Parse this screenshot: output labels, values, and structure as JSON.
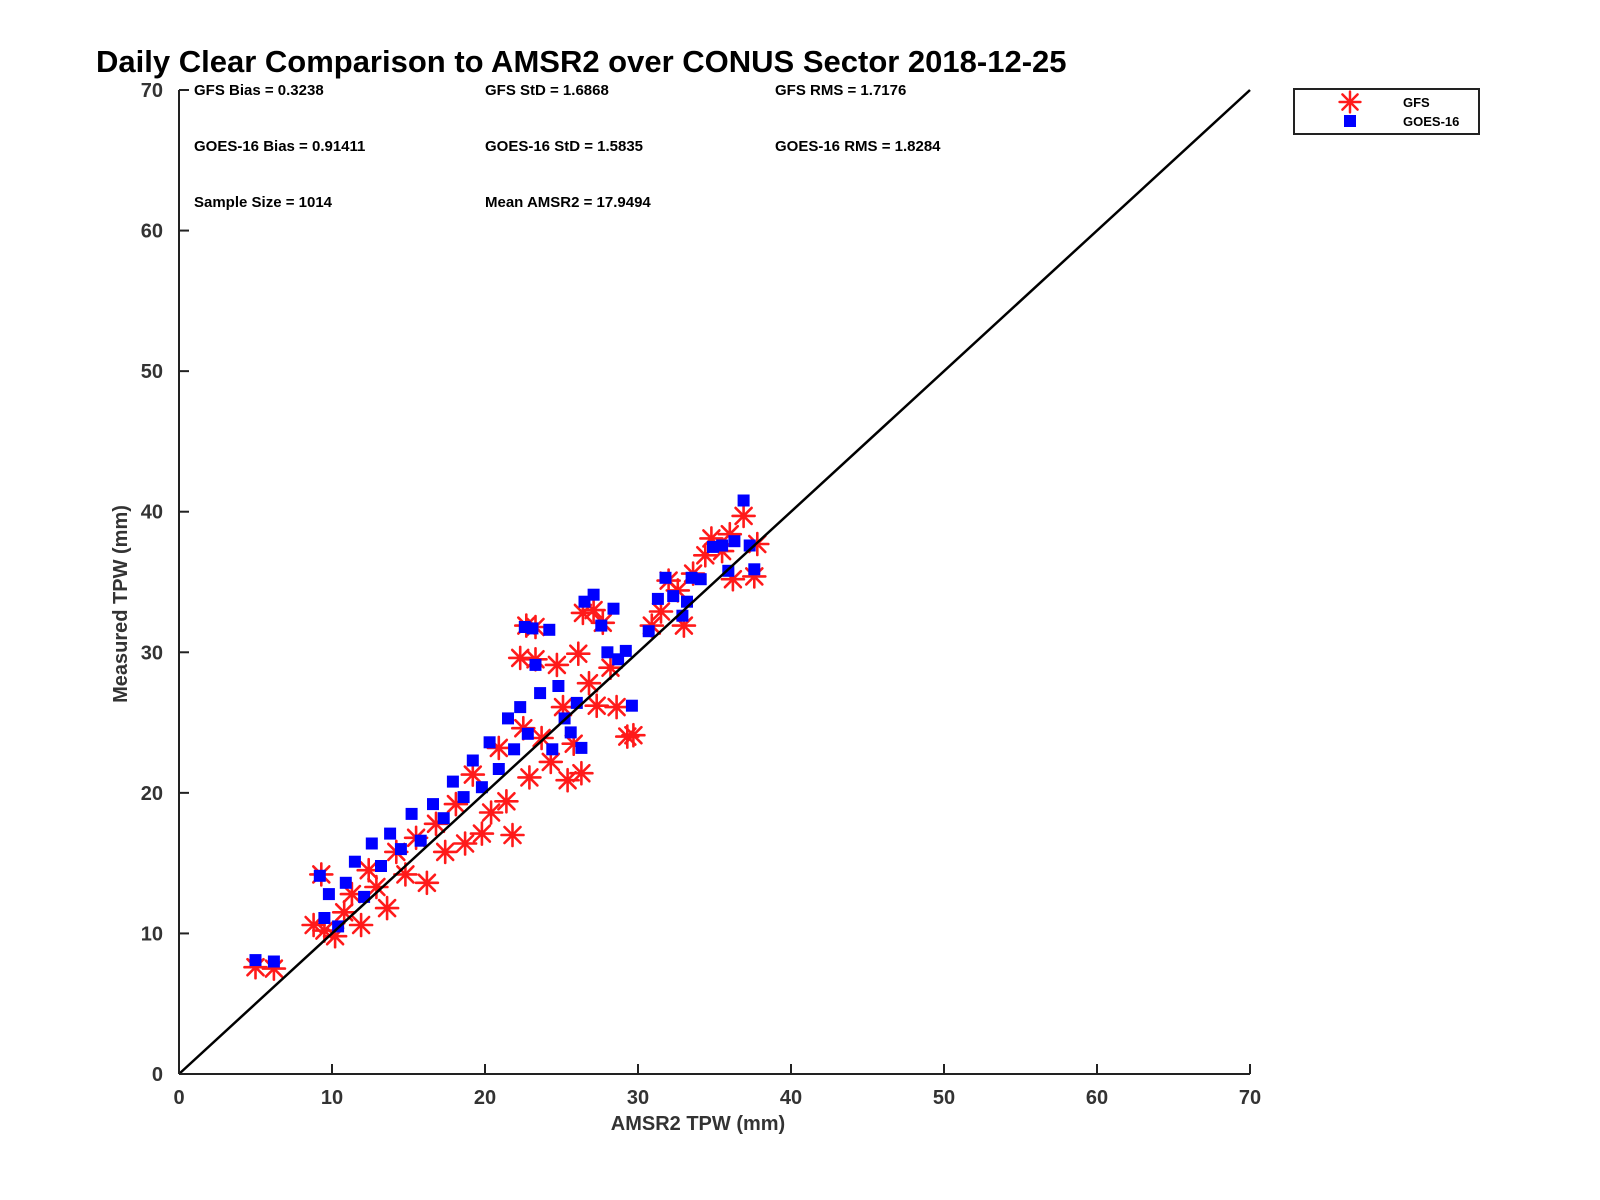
{
  "chart_data": {
    "type": "scatter",
    "title": "Daily Clear Comparison to AMSR2 over CONUS Sector 2018-12-25",
    "xlabel": "AMSR2 TPW (mm)",
    "ylabel": "Measured TPW (mm)",
    "xlim": [
      0,
      70
    ],
    "ylim": [
      0,
      70
    ],
    "xticks": [
      "0",
      "10",
      "20",
      "30",
      "40",
      "50",
      "60",
      "70"
    ],
    "yticks": [
      "0",
      "10",
      "20",
      "30",
      "40",
      "50",
      "60",
      "70"
    ],
    "grid": false,
    "legend_position": "outside-top-right",
    "reference_line": {
      "x": [
        0,
        70
      ],
      "y": [
        0,
        70
      ],
      "color": "#000000"
    },
    "stats": [
      "GFS Bias = 0.3238",
      "GFS StD = 1.6868",
      "GFS RMS = 1.7176",
      "GOES-16 Bias = 0.91411",
      "GOES-16 StD = 1.5835",
      "GOES-16 RMS = 1.8284",
      "Sample Size = 1014",
      "Mean AMSR2 = 17.9494"
    ],
    "series": [
      {
        "name": "GFS",
        "marker": "asterisk",
        "color": "#ff1a1a",
        "points": [
          [
            5,
            7.6
          ],
          [
            6.2,
            7.5
          ],
          [
            8.8,
            10.6
          ],
          [
            9.3,
            14.2
          ],
          [
            9.5,
            10.2
          ],
          [
            10.2,
            9.8
          ],
          [
            10.8,
            11.5
          ],
          [
            11.3,
            12.8
          ],
          [
            11.9,
            10.6
          ],
          [
            12.4,
            14.5
          ],
          [
            12.9,
            13.3
          ],
          [
            13.6,
            11.8
          ],
          [
            14.2,
            15.8
          ],
          [
            14.8,
            14.2
          ],
          [
            15.5,
            16.8
          ],
          [
            16.2,
            13.6
          ],
          [
            16.8,
            17.8
          ],
          [
            17.4,
            15.8
          ],
          [
            18.1,
            19.2
          ],
          [
            18.7,
            16.4
          ],
          [
            19.2,
            21.3
          ],
          [
            19.8,
            17.1
          ],
          [
            20.4,
            18.6
          ],
          [
            20.9,
            23.2
          ],
          [
            21.4,
            19.4
          ],
          [
            21.8,
            17.0
          ],
          [
            22.3,
            29.6
          ],
          [
            22.5,
            24.6
          ],
          [
            22.7,
            31.9
          ],
          [
            22.9,
            21.1
          ],
          [
            23.3,
            29.5
          ],
          [
            23.3,
            31.8
          ],
          [
            23.7,
            23.9
          ],
          [
            24.3,
            22.2
          ],
          [
            24.7,
            29.1
          ],
          [
            25.1,
            26.1
          ],
          [
            25.4,
            20.9
          ],
          [
            25.8,
            23.5
          ],
          [
            26.1,
            29.9
          ],
          [
            26.3,
            21.4
          ],
          [
            26.4,
            32.8
          ],
          [
            26.8,
            27.8
          ],
          [
            27.1,
            33.0
          ],
          [
            27.3,
            26.2
          ],
          [
            27.7,
            32.1
          ],
          [
            28.2,
            28.9
          ],
          [
            28.6,
            26.1
          ],
          [
            29.3,
            24.0
          ],
          [
            29.7,
            24.1
          ],
          [
            30.9,
            31.9
          ],
          [
            31.5,
            32.9
          ],
          [
            32.0,
            35.1
          ],
          [
            32.6,
            34.4
          ],
          [
            33.0,
            31.9
          ],
          [
            33.6,
            35.6
          ],
          [
            34.4,
            36.9
          ],
          [
            34.8,
            38.1
          ],
          [
            35.5,
            37.2
          ],
          [
            36.0,
            38.4
          ],
          [
            36.2,
            35.2
          ],
          [
            36.9,
            39.7
          ],
          [
            37.6,
            35.4
          ],
          [
            37.8,
            37.7
          ]
        ]
      },
      {
        "name": "GOES-16",
        "marker": "square",
        "color": "#0000ff",
        "points": [
          [
            5,
            8.1
          ],
          [
            6.2,
            8.0
          ],
          [
            9.2,
            14.1
          ],
          [
            9.5,
            11.1
          ],
          [
            9.8,
            12.8
          ],
          [
            10.4,
            10.5
          ],
          [
            10.9,
            13.6
          ],
          [
            11.5,
            15.1
          ],
          [
            12.1,
            12.6
          ],
          [
            12.6,
            16.4
          ],
          [
            13.2,
            14.8
          ],
          [
            13.8,
            17.1
          ],
          [
            14.5,
            16.0
          ],
          [
            15.2,
            18.5
          ],
          [
            15.8,
            16.6
          ],
          [
            16.6,
            19.2
          ],
          [
            17.3,
            18.2
          ],
          [
            17.9,
            20.8
          ],
          [
            18.6,
            19.7
          ],
          [
            19.2,
            22.3
          ],
          [
            19.8,
            20.4
          ],
          [
            20.3,
            23.6
          ],
          [
            20.9,
            21.7
          ],
          [
            21.5,
            25.3
          ],
          [
            21.9,
            23.1
          ],
          [
            22.3,
            26.1
          ],
          [
            22.6,
            31.8
          ],
          [
            22.8,
            24.2
          ],
          [
            23.1,
            31.7
          ],
          [
            23.3,
            29.1
          ],
          [
            23.6,
            27.1
          ],
          [
            24.2,
            31.6
          ],
          [
            24.4,
            23.1
          ],
          [
            24.8,
            27.6
          ],
          [
            25.2,
            25.3
          ],
          [
            25.6,
            24.3
          ],
          [
            26.0,
            26.4
          ],
          [
            26.3,
            23.2
          ],
          [
            26.5,
            33.6
          ],
          [
            27.1,
            34.1
          ],
          [
            27.6,
            31.9
          ],
          [
            28.0,
            30.0
          ],
          [
            28.4,
            33.1
          ],
          [
            28.7,
            29.5
          ],
          [
            29.2,
            30.1
          ],
          [
            29.6,
            26.2
          ],
          [
            30.7,
            31.5
          ],
          [
            31.3,
            33.8
          ],
          [
            31.8,
            35.3
          ],
          [
            32.3,
            34.0
          ],
          [
            32.9,
            32.6
          ],
          [
            33.2,
            33.6
          ],
          [
            33.5,
            35.3
          ],
          [
            34.1,
            35.2
          ],
          [
            34.9,
            37.5
          ],
          [
            35.5,
            37.6
          ],
          [
            35.9,
            35.8
          ],
          [
            36.3,
            37.9
          ],
          [
            36.9,
            40.8
          ],
          [
            37.3,
            37.6
          ],
          [
            37.6,
            35.9
          ]
        ]
      }
    ]
  }
}
